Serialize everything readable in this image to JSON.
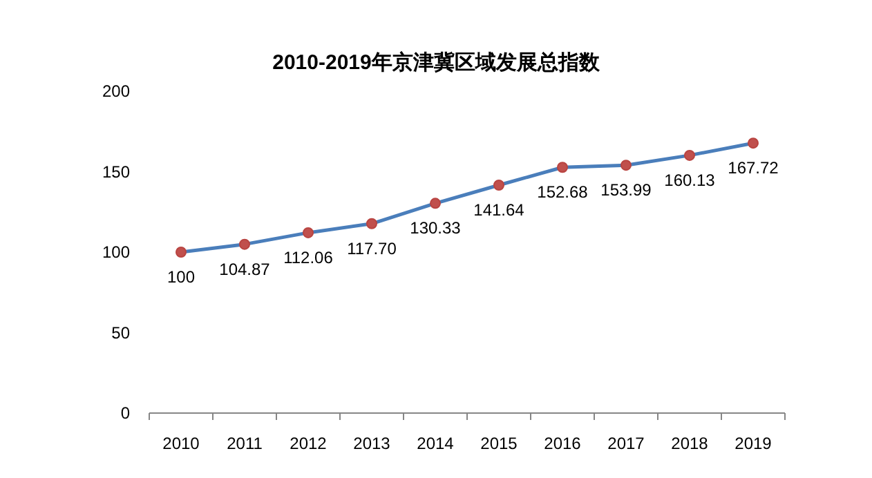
{
  "chart_data": {
    "type": "line",
    "title": "2010-2019年京津冀区域发展总指数",
    "categories": [
      "2010",
      "2011",
      "2012",
      "2013",
      "2014",
      "2015",
      "2016",
      "2017",
      "2018",
      "2019"
    ],
    "series": [
      {
        "color": "#4a7ebb",
        "values": [
          100,
          104.87,
          112.06,
          117.7,
          130.33,
          141.64,
          152.68,
          153.99,
          160.13,
          167.72
        ]
      }
    ],
    "value_labels": [
      "100",
      "104.87",
      "112.06",
      "117.70",
      "130.33",
      "141.64",
      "152.68",
      "153.99",
      "160.13",
      "167.72"
    ],
    "ylim": [
      0,
      200
    ],
    "yticks": [
      0,
      50,
      100,
      150,
      200
    ],
    "marker": "circle",
    "line_style": "solid",
    "grid": false
  }
}
